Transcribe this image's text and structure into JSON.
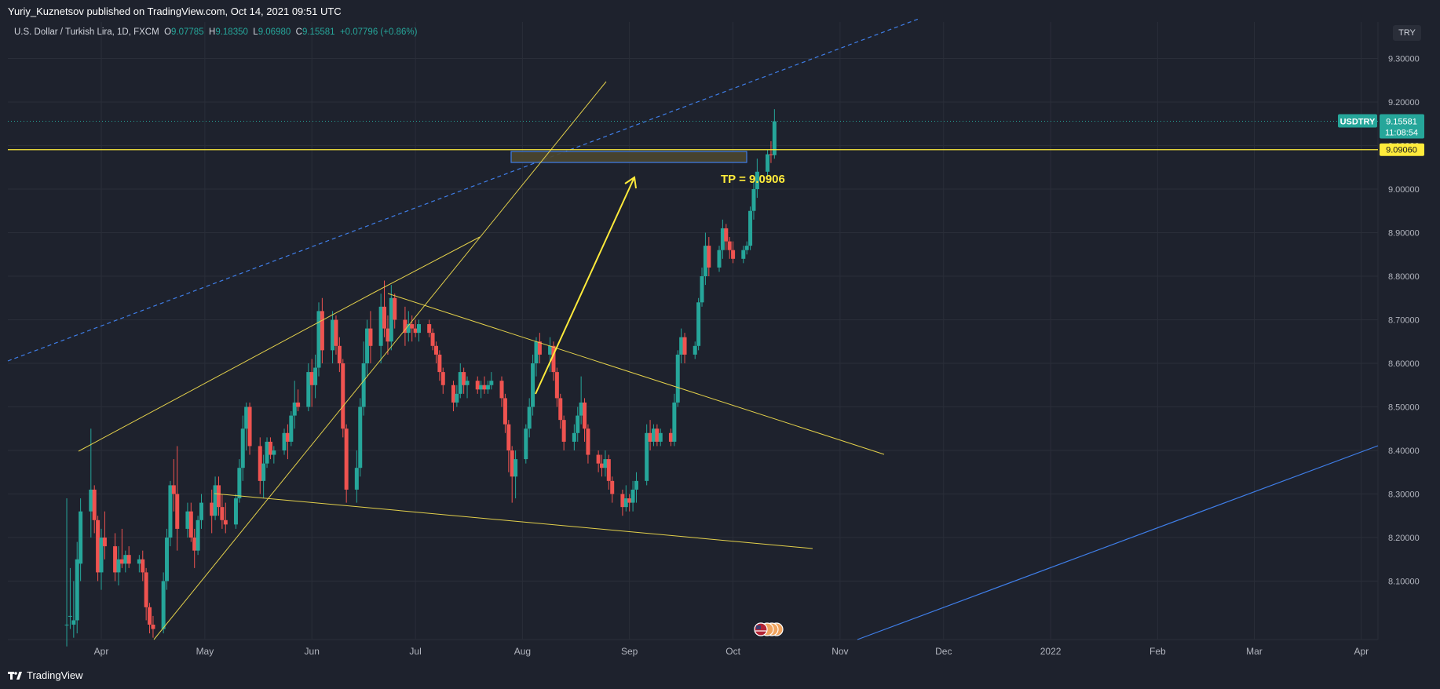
{
  "header": {
    "published_text": "Yuriy_Kuznetsov published on TradingView.com, Oct 14, 2021 09:51 UTC"
  },
  "legend": {
    "symbol_text": "U.S. Dollar / Turkish Lira, 1D, FXCM",
    "open_label": "O",
    "open": "9.07785",
    "high_label": "H",
    "high": "9.18350",
    "low_label": "L",
    "low": "9.06980",
    "close_label": "C",
    "close": "9.15581",
    "change": "+0.07796 (+0.86%)"
  },
  "currency_button": "TRY",
  "footer": {
    "brand": "TradingView"
  },
  "colors": {
    "background": "#1e222d",
    "grid": "#2a2e39",
    "up": "#26a69a",
    "down": "#ef5350",
    "trendline": "#e3d04b",
    "blue_line": "#3f7ee8",
    "price_label": "#26a69a",
    "tp_label": "#ffeb3b"
  },
  "icons": [
    "tradingview-logo-icon",
    "us-flag-event-icon"
  ],
  "chart_data": {
    "type": "candlestick",
    "symbol": "USDTRY",
    "interval": "1D",
    "y_ticks": [
      "9.30000",
      "9.20000",
      "9.10000",
      "9.00000",
      "8.90000",
      "8.80000",
      "8.70000",
      "8.60000",
      "8.50000",
      "8.40000",
      "8.30000",
      "8.20000",
      "8.10000"
    ],
    "x_ticks": [
      "Apr",
      "May",
      "Jun",
      "Jul",
      "Aug",
      "Sep",
      "Oct",
      "Nov",
      "Dec",
      "2022",
      "Feb",
      "Mar",
      "Apr"
    ],
    "ylim": [
      8.01,
      9.41
    ],
    "grid": true,
    "last_price": {
      "symbol_label": "USDTRY",
      "value": "9.15581",
      "countdown": "11:08:54",
      "y": 9.15581
    },
    "horizontal_level": {
      "value": "9.09060",
      "y": 9.0906
    },
    "annotation": {
      "text": "TP = 9.0906"
    },
    "candles": [
      {
        "date": "2021-03-22",
        "o": 8.0,
        "h": 8.29,
        "l": 7.95,
        "c": 8.0
      },
      {
        "date": "2021-03-23",
        "o": 8.02,
        "h": 8.13,
        "l": 7.99,
        "c": 8.02
      },
      {
        "date": "2021-03-24",
        "o": 8.0,
        "h": 8.1,
        "l": 7.97,
        "c": 8.01
      },
      {
        "date": "2021-03-25",
        "o": 8.01,
        "h": 8.19,
        "l": 7.98,
        "c": 8.15
      },
      {
        "date": "2021-03-26",
        "o": 8.14,
        "h": 8.29,
        "l": 8.1,
        "c": 8.26
      },
      {
        "date": "2021-03-29",
        "o": 8.26,
        "h": 8.45,
        "l": 8.2,
        "c": 8.31
      },
      {
        "date": "2021-03-30",
        "o": 8.31,
        "h": 8.32,
        "l": 8.21,
        "c": 8.24
      },
      {
        "date": "2021-03-31",
        "o": 8.24,
        "h": 8.25,
        "l": 8.1,
        "c": 8.12
      },
      {
        "date": "2021-04-01",
        "o": 8.12,
        "h": 8.22,
        "l": 8.08,
        "c": 8.2
      },
      {
        "date": "2021-04-02",
        "o": 8.2,
        "h": 8.26,
        "l": 8.15,
        "c": 8.18
      },
      {
        "date": "2021-04-05",
        "o": 8.18,
        "h": 8.21,
        "l": 8.1,
        "c": 8.12
      },
      {
        "date": "2021-04-06",
        "o": 8.12,
        "h": 8.18,
        "l": 8.09,
        "c": 8.15
      },
      {
        "date": "2021-04-07",
        "o": 8.15,
        "h": 8.22,
        "l": 8.13,
        "c": 8.14
      },
      {
        "date": "2021-04-08",
        "o": 8.14,
        "h": 8.17,
        "l": 8.12,
        "c": 8.16
      },
      {
        "date": "2021-04-09",
        "o": 8.16,
        "h": 8.18,
        "l": 8.13,
        "c": 8.14
      },
      {
        "date": "2021-04-12",
        "o": 8.14,
        "h": 8.16,
        "l": 8.12,
        "c": 8.15
      },
      {
        "date": "2021-04-13",
        "o": 8.15,
        "h": 8.17,
        "l": 8.1,
        "c": 8.12
      },
      {
        "date": "2021-04-14",
        "o": 8.12,
        "h": 8.13,
        "l": 8.01,
        "c": 8.04
      },
      {
        "date": "2021-04-15",
        "o": 8.04,
        "h": 8.05,
        "l": 7.98,
        "c": 8.0
      },
      {
        "date": "2021-04-16",
        "o": 8.0,
        "h": 8.02,
        "l": 7.97,
        "c": 7.99
      },
      {
        "date": "2021-04-19",
        "o": 7.99,
        "h": 8.12,
        "l": 7.98,
        "c": 8.1
      },
      {
        "date": "2021-04-20",
        "o": 8.1,
        "h": 8.22,
        "l": 8.08,
        "c": 8.2
      },
      {
        "date": "2021-04-21",
        "o": 8.2,
        "h": 8.33,
        "l": 8.18,
        "c": 8.32
      },
      {
        "date": "2021-04-22",
        "o": 8.32,
        "h": 8.38,
        "l": 8.26,
        "c": 8.3
      },
      {
        "date": "2021-04-23",
        "o": 8.3,
        "h": 8.41,
        "l": 8.17,
        "c": 8.22
      },
      {
        "date": "2021-04-26",
        "o": 8.22,
        "h": 8.28,
        "l": 8.2,
        "c": 8.26
      },
      {
        "date": "2021-04-27",
        "o": 8.26,
        "h": 8.28,
        "l": 8.19,
        "c": 8.2
      },
      {
        "date": "2021-04-28",
        "o": 8.2,
        "h": 8.22,
        "l": 8.13,
        "c": 8.17
      },
      {
        "date": "2021-04-29",
        "o": 8.17,
        "h": 8.25,
        "l": 8.16,
        "c": 8.24
      },
      {
        "date": "2021-04-30",
        "o": 8.24,
        "h": 8.3,
        "l": 8.22,
        "c": 8.28
      },
      {
        "date": "2021-05-03",
        "o": 8.28,
        "h": 8.31,
        "l": 8.21,
        "c": 8.25
      },
      {
        "date": "2021-05-04",
        "o": 8.25,
        "h": 8.34,
        "l": 8.24,
        "c": 8.32
      },
      {
        "date": "2021-05-05",
        "o": 8.32,
        "h": 8.34,
        "l": 8.25,
        "c": 8.27
      },
      {
        "date": "2021-05-06",
        "o": 8.27,
        "h": 8.3,
        "l": 8.22,
        "c": 8.24
      },
      {
        "date": "2021-05-07",
        "o": 8.24,
        "h": 8.28,
        "l": 8.21,
        "c": 8.23
      },
      {
        "date": "2021-05-10",
        "o": 8.23,
        "h": 8.3,
        "l": 8.22,
        "c": 8.29
      },
      {
        "date": "2021-05-11",
        "o": 8.29,
        "h": 8.38,
        "l": 8.28,
        "c": 8.36
      },
      {
        "date": "2021-05-12",
        "o": 8.36,
        "h": 8.48,
        "l": 8.33,
        "c": 8.45
      },
      {
        "date": "2021-05-13",
        "o": 8.45,
        "h": 8.51,
        "l": 8.4,
        "c": 8.5
      },
      {
        "date": "2021-05-14",
        "o": 8.5,
        "h": 8.51,
        "l": 8.39,
        "c": 8.41
      },
      {
        "date": "2021-05-17",
        "o": 8.41,
        "h": 8.43,
        "l": 8.3,
        "c": 8.33
      },
      {
        "date": "2021-05-18",
        "o": 8.33,
        "h": 8.39,
        "l": 8.29,
        "c": 8.37
      },
      {
        "date": "2021-05-19",
        "o": 8.37,
        "h": 8.43,
        "l": 8.36,
        "c": 8.42
      },
      {
        "date": "2021-05-20",
        "o": 8.42,
        "h": 8.43,
        "l": 8.38,
        "c": 8.39
      },
      {
        "date": "2021-05-21",
        "o": 8.39,
        "h": 8.41,
        "l": 8.37,
        "c": 8.4
      },
      {
        "date": "2021-05-24",
        "o": 8.4,
        "h": 8.45,
        "l": 8.39,
        "c": 8.44
      },
      {
        "date": "2021-05-25",
        "o": 8.44,
        "h": 8.46,
        "l": 8.38,
        "c": 8.42
      },
      {
        "date": "2021-05-26",
        "o": 8.42,
        "h": 8.49,
        "l": 8.41,
        "c": 8.48
      },
      {
        "date": "2021-05-27",
        "o": 8.48,
        "h": 8.56,
        "l": 8.45,
        "c": 8.51
      },
      {
        "date": "2021-05-28",
        "o": 8.51,
        "h": 8.54,
        "l": 8.49,
        "c": 8.5
      },
      {
        "date": "2021-05-31",
        "o": 8.5,
        "h": 8.6,
        "l": 8.49,
        "c": 8.58
      },
      {
        "date": "2021-06-01",
        "o": 8.58,
        "h": 8.61,
        "l": 8.5,
        "c": 8.55
      },
      {
        "date": "2021-06-02",
        "o": 8.55,
        "h": 8.62,
        "l": 8.52,
        "c": 8.59
      },
      {
        "date": "2021-06-03",
        "o": 8.59,
        "h": 8.74,
        "l": 8.57,
        "c": 8.72
      },
      {
        "date": "2021-06-04",
        "o": 8.72,
        "h": 8.75,
        "l": 8.6,
        "c": 8.63
      },
      {
        "date": "2021-06-07",
        "o": 8.63,
        "h": 8.72,
        "l": 8.6,
        "c": 8.7
      },
      {
        "date": "2021-06-08",
        "o": 8.7,
        "h": 8.71,
        "l": 8.62,
        "c": 8.64
      },
      {
        "date": "2021-06-09",
        "o": 8.64,
        "h": 8.66,
        "l": 8.58,
        "c": 8.6
      },
      {
        "date": "2021-06-10",
        "o": 8.6,
        "h": 8.61,
        "l": 8.43,
        "c": 8.45
      },
      {
        "date": "2021-06-11",
        "o": 8.45,
        "h": 8.46,
        "l": 8.28,
        "c": 8.31
      },
      {
        "date": "2021-06-14",
        "o": 8.31,
        "h": 8.4,
        "l": 8.28,
        "c": 8.36
      },
      {
        "date": "2021-06-15",
        "o": 8.36,
        "h": 8.52,
        "l": 8.34,
        "c": 8.5
      },
      {
        "date": "2021-06-16",
        "o": 8.5,
        "h": 8.65,
        "l": 8.48,
        "c": 8.6
      },
      {
        "date": "2021-06-17",
        "o": 8.6,
        "h": 8.7,
        "l": 8.57,
        "c": 8.68
      },
      {
        "date": "2021-06-18",
        "o": 8.68,
        "h": 8.72,
        "l": 8.6,
        "c": 8.64
      },
      {
        "date": "2021-06-21",
        "o": 8.64,
        "h": 8.76,
        "l": 8.6,
        "c": 8.73
      },
      {
        "date": "2021-06-22",
        "o": 8.73,
        "h": 8.79,
        "l": 8.66,
        "c": 8.68
      },
      {
        "date": "2021-06-23",
        "o": 8.68,
        "h": 8.71,
        "l": 8.62,
        "c": 8.65
      },
      {
        "date": "2021-06-24",
        "o": 8.65,
        "h": 8.78,
        "l": 8.63,
        "c": 8.75
      },
      {
        "date": "2021-06-25",
        "o": 8.75,
        "h": 8.76,
        "l": 8.68,
        "c": 8.7
      },
      {
        "date": "2021-06-28",
        "o": 8.7,
        "h": 8.73,
        "l": 8.64,
        "c": 8.67
      },
      {
        "date": "2021-06-29",
        "o": 8.67,
        "h": 8.72,
        "l": 8.65,
        "c": 8.69
      },
      {
        "date": "2021-06-30",
        "o": 8.69,
        "h": 8.71,
        "l": 8.65,
        "c": 8.68
      },
      {
        "date": "2021-07-01",
        "o": 8.68,
        "h": 8.7,
        "l": 8.66,
        "c": 8.67
      },
      {
        "date": "2021-07-02",
        "o": 8.67,
        "h": 8.7,
        "l": 8.65,
        "c": 8.69
      },
      {
        "date": "2021-07-05",
        "o": 8.69,
        "h": 8.7,
        "l": 8.66,
        "c": 8.67
      },
      {
        "date": "2021-07-06",
        "o": 8.67,
        "h": 8.68,
        "l": 8.63,
        "c": 8.64
      },
      {
        "date": "2021-07-07",
        "o": 8.64,
        "h": 8.65,
        "l": 8.6,
        "c": 8.62
      },
      {
        "date": "2021-07-08",
        "o": 8.62,
        "h": 8.63,
        "l": 8.56,
        "c": 8.58
      },
      {
        "date": "2021-07-09",
        "o": 8.58,
        "h": 8.59,
        "l": 8.53,
        "c": 8.55
      },
      {
        "date": "2021-07-12",
        "o": 8.55,
        "h": 8.56,
        "l": 8.49,
        "c": 8.51
      },
      {
        "date": "2021-07-13",
        "o": 8.51,
        "h": 8.55,
        "l": 8.5,
        "c": 8.53
      },
      {
        "date": "2021-07-14",
        "o": 8.53,
        "h": 8.6,
        "l": 8.52,
        "c": 8.58
      },
      {
        "date": "2021-07-15",
        "o": 8.58,
        "h": 8.59,
        "l": 8.53,
        "c": 8.55
      },
      {
        "date": "2021-07-16",
        "o": 8.55,
        "h": 8.57,
        "l": 8.52,
        "c": 8.56
      },
      {
        "date": "2021-07-19",
        "o": 8.56,
        "h": 8.57,
        "l": 8.53,
        "c": 8.54
      },
      {
        "date": "2021-07-20",
        "o": 8.54,
        "h": 8.56,
        "l": 8.52,
        "c": 8.55
      },
      {
        "date": "2021-07-21",
        "o": 8.55,
        "h": 8.57,
        "l": 8.53,
        "c": 8.54
      },
      {
        "date": "2021-07-22",
        "o": 8.54,
        "h": 8.56,
        "l": 8.53,
        "c": 8.55
      },
      {
        "date": "2021-07-23",
        "o": 8.55,
        "h": 8.58,
        "l": 8.54,
        "c": 8.56
      },
      {
        "date": "2021-07-26",
        "o": 8.56,
        "h": 8.57,
        "l": 8.5,
        "c": 8.52
      },
      {
        "date": "2021-07-27",
        "o": 8.52,
        "h": 8.53,
        "l": 8.44,
        "c": 8.46
      },
      {
        "date": "2021-07-28",
        "o": 8.46,
        "h": 8.47,
        "l": 8.35,
        "c": 8.4
      },
      {
        "date": "2021-07-29",
        "o": 8.4,
        "h": 8.41,
        "l": 8.28,
        "c": 8.34
      },
      {
        "date": "2021-07-30",
        "o": 8.34,
        "h": 8.4,
        "l": 8.29,
        "c": 8.38
      },
      {
        "date": "2021-08-02",
        "o": 8.38,
        "h": 8.46,
        "l": 8.37,
        "c": 8.45
      },
      {
        "date": "2021-08-03",
        "o": 8.45,
        "h": 8.52,
        "l": 8.43,
        "c": 8.5
      },
      {
        "date": "2021-08-04",
        "o": 8.5,
        "h": 8.62,
        "l": 8.48,
        "c": 8.6
      },
      {
        "date": "2021-08-05",
        "o": 8.6,
        "h": 8.66,
        "l": 8.57,
        "c": 8.65
      },
      {
        "date": "2021-08-06",
        "o": 8.65,
        "h": 8.67,
        "l": 8.6,
        "c": 8.62
      },
      {
        "date": "2021-08-09",
        "o": 8.62,
        "h": 8.66,
        "l": 8.58,
        "c": 8.64
      },
      {
        "date": "2021-08-10",
        "o": 8.64,
        "h": 8.65,
        "l": 8.56,
        "c": 8.58
      },
      {
        "date": "2021-08-11",
        "o": 8.58,
        "h": 8.59,
        "l": 8.5,
        "c": 8.52
      },
      {
        "date": "2021-08-12",
        "o": 8.52,
        "h": 8.53,
        "l": 8.45,
        "c": 8.47
      },
      {
        "date": "2021-08-13",
        "o": 8.47,
        "h": 8.48,
        "l": 8.4,
        "c": 8.42
      },
      {
        "date": "2021-08-16",
        "o": 8.42,
        "h": 8.46,
        "l": 8.4,
        "c": 8.44
      },
      {
        "date": "2021-08-17",
        "o": 8.44,
        "h": 8.5,
        "l": 8.42,
        "c": 8.48
      },
      {
        "date": "2021-08-18",
        "o": 8.48,
        "h": 8.57,
        "l": 8.46,
        "c": 8.51
      },
      {
        "date": "2021-08-19",
        "o": 8.51,
        "h": 8.52,
        "l": 8.42,
        "c": 8.45
      },
      {
        "date": "2021-08-20",
        "o": 8.45,
        "h": 8.46,
        "l": 8.37,
        "c": 8.39
      },
      {
        "date": "2021-08-23",
        "o": 8.39,
        "h": 8.4,
        "l": 8.35,
        "c": 8.37
      },
      {
        "date": "2021-08-24",
        "o": 8.37,
        "h": 8.39,
        "l": 8.34,
        "c": 8.36
      },
      {
        "date": "2021-08-25",
        "o": 8.36,
        "h": 8.4,
        "l": 8.34,
        "c": 8.38
      },
      {
        "date": "2021-08-26",
        "o": 8.38,
        "h": 8.39,
        "l": 8.31,
        "c": 8.33
      },
      {
        "date": "2021-08-27",
        "o": 8.33,
        "h": 8.34,
        "l": 8.28,
        "c": 8.3
      },
      {
        "date": "2021-08-30",
        "o": 8.3,
        "h": 8.31,
        "l": 8.25,
        "c": 8.27
      },
      {
        "date": "2021-08-31",
        "o": 8.27,
        "h": 8.32,
        "l": 8.26,
        "c": 8.29
      },
      {
        "date": "2021-09-01",
        "o": 8.29,
        "h": 8.3,
        "l": 8.26,
        "c": 8.28
      },
      {
        "date": "2021-09-02",
        "o": 8.28,
        "h": 8.33,
        "l": 8.26,
        "c": 8.31
      },
      {
        "date": "2021-09-03",
        "o": 8.31,
        "h": 8.35,
        "l": 8.28,
        "c": 8.33
      },
      {
        "date": "2021-09-06",
        "o": 8.33,
        "h": 8.46,
        "l": 8.32,
        "c": 8.44
      },
      {
        "date": "2021-09-07",
        "o": 8.44,
        "h": 8.47,
        "l": 8.4,
        "c": 8.42
      },
      {
        "date": "2021-09-08",
        "o": 8.42,
        "h": 8.46,
        "l": 8.41,
        "c": 8.45
      },
      {
        "date": "2021-09-09",
        "o": 8.45,
        "h": 8.46,
        "l": 8.41,
        "c": 8.42
      },
      {
        "date": "2021-09-10",
        "o": 8.42,
        "h": 8.45,
        "l": 8.41,
        "c": 8.44
      },
      {
        "date": "2021-09-13",
        "o": 8.44,
        "h": 8.45,
        "l": 8.41,
        "c": 8.42
      },
      {
        "date": "2021-09-14",
        "o": 8.42,
        "h": 8.53,
        "l": 8.41,
        "c": 8.51
      },
      {
        "date": "2021-09-15",
        "o": 8.51,
        "h": 8.63,
        "l": 8.5,
        "c": 8.62
      },
      {
        "date": "2021-09-16",
        "o": 8.62,
        "h": 8.68,
        "l": 8.6,
        "c": 8.66
      },
      {
        "date": "2021-09-17",
        "o": 8.66,
        "h": 8.67,
        "l": 8.6,
        "c": 8.62
      },
      {
        "date": "2021-09-20",
        "o": 8.62,
        "h": 8.65,
        "l": 8.61,
        "c": 8.64
      },
      {
        "date": "2021-09-21",
        "o": 8.64,
        "h": 8.75,
        "l": 8.63,
        "c": 8.74
      },
      {
        "date": "2021-09-22",
        "o": 8.74,
        "h": 8.82,
        "l": 8.73,
        "c": 8.8
      },
      {
        "date": "2021-09-23",
        "o": 8.8,
        "h": 8.9,
        "l": 8.78,
        "c": 8.87
      },
      {
        "date": "2021-09-24",
        "o": 8.87,
        "h": 8.89,
        "l": 8.8,
        "c": 8.82
      },
      {
        "date": "2021-09-27",
        "o": 8.82,
        "h": 8.87,
        "l": 8.81,
        "c": 8.86
      },
      {
        "date": "2021-09-28",
        "o": 8.86,
        "h": 8.93,
        "l": 8.84,
        "c": 8.91
      },
      {
        "date": "2021-09-29",
        "o": 8.91,
        "h": 8.92,
        "l": 8.86,
        "c": 8.88
      },
      {
        "date": "2021-09-30",
        "o": 8.88,
        "h": 8.89,
        "l": 8.84,
        "c": 8.86
      },
      {
        "date": "2021-10-01",
        "o": 8.86,
        "h": 8.88,
        "l": 8.83,
        "c": 8.84
      },
      {
        "date": "2021-10-04",
        "o": 8.84,
        "h": 8.87,
        "l": 8.83,
        "c": 8.86
      },
      {
        "date": "2021-10-05",
        "o": 8.86,
        "h": 8.88,
        "l": 8.85,
        "c": 8.87
      },
      {
        "date": "2021-10-06",
        "o": 8.87,
        "h": 8.96,
        "l": 8.86,
        "c": 8.95
      },
      {
        "date": "2021-10-07",
        "o": 8.95,
        "h": 9.02,
        "l": 8.93,
        "c": 9.0
      },
      {
        "date": "2021-10-08",
        "o": 9.0,
        "h": 9.07,
        "l": 8.98,
        "c": 9.04
      },
      {
        "date": "2021-10-11",
        "o": 9.04,
        "h": 9.09,
        "l": 9.03,
        "c": 9.08
      },
      {
        "date": "2021-10-12",
        "o": 9.08,
        "h": 9.11,
        "l": 9.06,
        "c": 9.078
      },
      {
        "date": "2021-10-13",
        "o": 9.078,
        "h": 9.1835,
        "l": 9.0698,
        "c": 9.1558
      }
    ]
  }
}
